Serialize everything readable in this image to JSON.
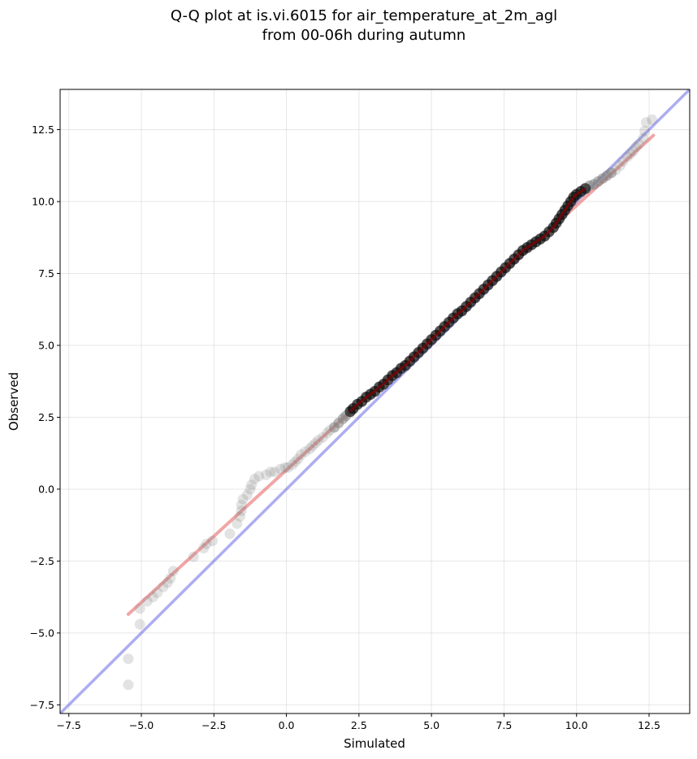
{
  "chart_data": {
    "type": "scatter",
    "title": [
      "Q-Q plot at is.vi.6015 for air_temperature_at_2m_agl",
      "from 00-06h during autumn"
    ],
    "xlabel": "Simulated",
    "ylabel": "Observed",
    "xlim": [
      -7.8,
      13.9
    ],
    "ylim": [
      -7.8,
      13.9
    ],
    "xticks": [
      -7.5,
      -5.0,
      -2.5,
      0.0,
      2.5,
      5.0,
      7.5,
      10.0,
      12.5
    ],
    "yticks": [
      -7.5,
      -5.0,
      -2.5,
      0.0,
      2.5,
      5.0,
      7.5,
      10.0,
      12.5
    ],
    "xtick_labels": [
      "−7.5",
      "−5.0",
      "−2.5",
      "0.0",
      "2.5",
      "5.0",
      "7.5",
      "10.0",
      "12.5"
    ],
    "ytick_labels": [
      "−7.5",
      "−5.0",
      "−2.5",
      "0.0",
      "2.5",
      "5.0",
      "7.5",
      "10.0",
      "12.5"
    ],
    "grid": true,
    "colors": {
      "points": "#808080",
      "core_points": "#000000",
      "identity_line": "#6a6ae8",
      "fit_line": "#e86a6a",
      "core_fit": "#8b0000",
      "core_identity": "#00008b"
    },
    "series": [
      {
        "kind": "points",
        "points": [
          [
            -5.45,
            -6.8
          ],
          [
            -5.45,
            -5.9
          ],
          [
            -5.05,
            -4.7
          ],
          [
            -5.05,
            -4.15
          ],
          [
            -4.8,
            -3.9
          ],
          [
            -4.6,
            -3.75
          ],
          [
            -4.45,
            -3.6
          ],
          [
            -4.25,
            -3.4
          ],
          [
            -4.1,
            -3.25
          ],
          [
            -4.0,
            -3.1
          ],
          [
            -3.9,
            -2.85
          ],
          [
            -3.2,
            -2.35
          ],
          [
            -2.85,
            -2.05
          ],
          [
            -2.75,
            -1.9
          ],
          [
            -2.55,
            -1.8
          ],
          [
            -1.95,
            -1.55
          ],
          [
            -1.7,
            -1.2
          ],
          [
            -1.6,
            -0.95
          ],
          [
            -1.55,
            -0.75
          ],
          [
            -1.55,
            -0.55
          ],
          [
            -1.5,
            -0.35
          ],
          [
            -1.35,
            -0.2
          ],
          [
            -1.25,
            0.0
          ],
          [
            -1.2,
            0.15
          ],
          [
            -1.1,
            0.35
          ],
          [
            -0.95,
            0.45
          ],
          [
            -0.7,
            0.5
          ],
          [
            -0.55,
            0.6
          ],
          [
            -0.4,
            0.6
          ],
          [
            -0.2,
            0.7
          ],
          [
            -0.05,
            0.75
          ],
          [
            0.05,
            0.75
          ],
          [
            0.2,
            0.85
          ],
          [
            0.3,
            0.95
          ],
          [
            0.4,
            1.05
          ],
          [
            0.5,
            1.2
          ],
          [
            0.65,
            1.3
          ],
          [
            0.8,
            1.4
          ],
          [
            0.9,
            1.5
          ],
          [
            1.0,
            1.6
          ],
          [
            1.1,
            1.7
          ],
          [
            1.25,
            1.8
          ],
          [
            1.4,
            1.95
          ],
          [
            1.5,
            2.05
          ],
          [
            1.65,
            2.15
          ],
          [
            1.8,
            2.3
          ],
          [
            1.95,
            2.45
          ],
          [
            2.05,
            2.55
          ],
          [
            2.2,
            2.7
          ],
          [
            2.3,
            2.8
          ],
          [
            2.45,
            2.95
          ],
          [
            2.6,
            3.05
          ],
          [
            2.75,
            3.2
          ],
          [
            2.9,
            3.3
          ],
          [
            3.05,
            3.4
          ],
          [
            3.2,
            3.55
          ],
          [
            3.35,
            3.65
          ],
          [
            3.5,
            3.8
          ],
          [
            3.65,
            3.95
          ],
          [
            3.8,
            4.05
          ],
          [
            3.95,
            4.2
          ],
          [
            4.1,
            4.3
          ],
          [
            4.25,
            4.45
          ],
          [
            4.4,
            4.6
          ],
          [
            4.55,
            4.75
          ],
          [
            4.7,
            4.9
          ],
          [
            4.85,
            5.05
          ],
          [
            5.0,
            5.2
          ],
          [
            5.15,
            5.35
          ],
          [
            5.3,
            5.5
          ],
          [
            5.45,
            5.65
          ],
          [
            5.6,
            5.8
          ],
          [
            5.75,
            5.95
          ],
          [
            5.9,
            6.1
          ],
          [
            6.05,
            6.2
          ],
          [
            6.2,
            6.35
          ],
          [
            6.35,
            6.5
          ],
          [
            6.5,
            6.65
          ],
          [
            6.65,
            6.8
          ],
          [
            6.8,
            6.95
          ],
          [
            6.95,
            7.1
          ],
          [
            7.1,
            7.25
          ],
          [
            7.25,
            7.4
          ],
          [
            7.4,
            7.55
          ],
          [
            7.55,
            7.7
          ],
          [
            7.7,
            7.85
          ],
          [
            7.85,
            8.0
          ],
          [
            8.0,
            8.15
          ],
          [
            8.15,
            8.3
          ],
          [
            8.3,
            8.4
          ],
          [
            8.45,
            8.5
          ],
          [
            8.6,
            8.6
          ],
          [
            8.75,
            8.7
          ],
          [
            8.9,
            8.8
          ],
          [
            9.05,
            8.95
          ],
          [
            9.2,
            9.1
          ],
          [
            9.3,
            9.25
          ],
          [
            9.4,
            9.4
          ],
          [
            9.5,
            9.55
          ],
          [
            9.6,
            9.7
          ],
          [
            9.7,
            9.85
          ],
          [
            9.8,
            10.0
          ],
          [
            9.9,
            10.15
          ],
          [
            10.0,
            10.25
          ],
          [
            10.15,
            10.35
          ],
          [
            10.3,
            10.45
          ],
          [
            10.45,
            10.55
          ],
          [
            10.6,
            10.6
          ],
          [
            10.75,
            10.7
          ],
          [
            10.9,
            10.8
          ],
          [
            11.05,
            10.9
          ],
          [
            11.2,
            11.0
          ],
          [
            11.35,
            11.1
          ],
          [
            11.5,
            11.25
          ],
          [
            11.6,
            11.4
          ],
          [
            11.75,
            11.55
          ],
          [
            11.85,
            11.65
          ],
          [
            11.95,
            11.75
          ],
          [
            12.05,
            11.9
          ],
          [
            12.15,
            12.0
          ],
          [
            12.3,
            12.2
          ],
          [
            12.35,
            12.45
          ],
          [
            12.4,
            12.75
          ],
          [
            12.6,
            12.85
          ]
        ]
      },
      {
        "kind": "identity_line",
        "points": [
          [
            -7.8,
            -7.8
          ],
          [
            13.9,
            13.9
          ]
        ]
      },
      {
        "kind": "fit_line",
        "points": [
          [
            -5.45,
            -4.35
          ],
          [
            12.65,
            12.3
          ]
        ]
      }
    ]
  }
}
